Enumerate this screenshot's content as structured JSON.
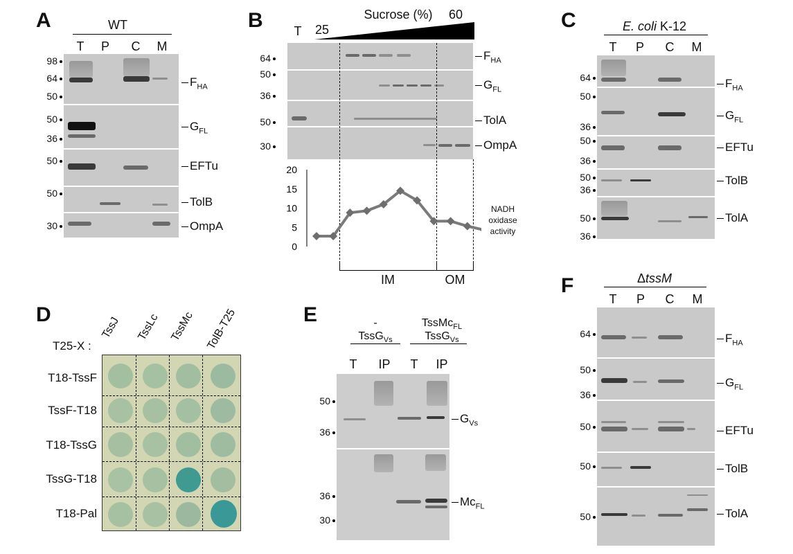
{
  "panels": {
    "A": {
      "label": "A",
      "group": "WT",
      "lanes": [
        "T",
        "P",
        "C",
        "M"
      ],
      "blots": [
        {
          "protein": "F",
          "sub": "HA",
          "markers": [
            "98",
            "64",
            "50"
          ]
        },
        {
          "protein": "G",
          "sub": "FL",
          "markers": [
            "50",
            "36"
          ]
        },
        {
          "protein": "EFTu",
          "sub": "",
          "markers": [
            "50"
          ]
        },
        {
          "protein": "TolB",
          "sub": "",
          "markers": [
            "50"
          ]
        },
        {
          "protein": "OmpA",
          "sub": "",
          "markers": [
            "30"
          ]
        }
      ]
    },
    "B": {
      "label": "B",
      "total_lane": "T",
      "gradient_label": "Sucrose (%)",
      "gradient_start": "25",
      "gradient_end": "60",
      "blots": [
        {
          "protein": "F",
          "sub": "HA",
          "marker": "64"
        },
        {
          "protein": "G",
          "sub": "FL",
          "markers": [
            "50",
            "36"
          ]
        },
        {
          "protein": "TolA",
          "sub": "",
          "marker": "50"
        },
        {
          "protein": "OmpA",
          "sub": "",
          "marker": "30"
        }
      ],
      "activity_label": [
        "NADH",
        "oxidase",
        "activity"
      ],
      "fractions": [
        "IM",
        "OM"
      ]
    },
    "C": {
      "label": "C",
      "group_italic": "E. coli",
      "group_rest": " K-12",
      "lanes": [
        "T",
        "P",
        "C",
        "M"
      ],
      "blots": [
        {
          "protein": "F",
          "sub": "HA",
          "markers": [
            "64"
          ]
        },
        {
          "protein": "G",
          "sub": "FL",
          "markers": [
            "50",
            "36"
          ]
        },
        {
          "protein": "EFTu",
          "sub": "",
          "markers": [
            "50",
            "36"
          ]
        },
        {
          "protein": "TolB",
          "sub": "",
          "markers": [
            "50",
            "36"
          ]
        },
        {
          "protein": "TolA",
          "sub": "",
          "markers": [
            "50",
            "36"
          ]
        }
      ]
    },
    "D": {
      "label": "D",
      "axis_label": "T25-X :",
      "columns": [
        "TssJ",
        "TssLc",
        "TssMc",
        "TolB-T25"
      ],
      "rows": [
        "T18-TssF",
        "TssF-T18",
        "T18-TssG",
        "TssG-T18",
        "T18-Pal"
      ],
      "blue_interactions": [
        [
          3,
          2
        ],
        [
          4,
          3
        ]
      ]
    },
    "E": {
      "label": "E",
      "group1_line1": "-",
      "group1_line2": "TssG",
      "group1_sub": "Vs",
      "group2_line1": "TssMc",
      "group2_sub1": "FL",
      "group2_line2": "TssG",
      "group2_sub2": "Vs",
      "lanes": [
        "T",
        "IP",
        "T",
        "IP"
      ],
      "blots": [
        {
          "protein": "G",
          "sub": "Vs",
          "markers": [
            "50",
            "36"
          ]
        },
        {
          "protein": "Mc",
          "sub": "FL",
          "markers": [
            "36",
            "30"
          ]
        }
      ]
    },
    "F": {
      "label": "F",
      "group_prefix": "Δ",
      "group_italic": "tssM",
      "lanes": [
        "T",
        "P",
        "C",
        "M"
      ],
      "blots": [
        {
          "protein": "F",
          "sub": "HA",
          "markers": [
            "64"
          ]
        },
        {
          "protein": "G",
          "sub": "FL",
          "markers": [
            "50",
            "36"
          ]
        },
        {
          "protein": "EFTu",
          "sub": "",
          "markers": [
            "50"
          ]
        },
        {
          "protein": "TolB",
          "sub": "",
          "markers": [
            "50"
          ]
        },
        {
          "protein": "TolA",
          "sub": "",
          "markers": [
            "50"
          ]
        }
      ]
    }
  },
  "chart_data": {
    "type": "line",
    "x": [
      1,
      2,
      3,
      4,
      5,
      6,
      7,
      8,
      9,
      10,
      11
    ],
    "series": [
      {
        "values": [
          2.7,
          2.7,
          8.8,
          9.3,
          11.0,
          14.5,
          12.0,
          6.6,
          6.6,
          5.3,
          4.3
        ]
      }
    ],
    "ylim": [
      0,
      20
    ],
    "yticks": [
      "0",
      "5",
      "10",
      "15",
      "20"
    ],
    "grid": false,
    "colors": {
      "line": "#7a7a7a",
      "marker": "#6e6e6e"
    }
  }
}
